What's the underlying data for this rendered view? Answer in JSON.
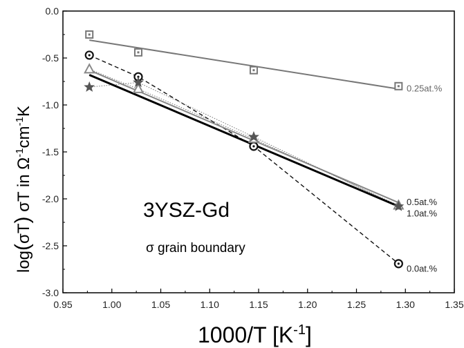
{
  "chart_data": {
    "type": "scatter",
    "xlabel_main": "1000/T [K",
    "xlabel_sup": "-1",
    "xlabel_end": "]",
    "ylabel": {
      "log": "log",
      "paren_open": "(",
      "sigma_t": "σT",
      "paren_close": ")",
      "sigma_t2": " σT  in Ω",
      "sup1": "-1",
      "cm": "cm",
      "sup2": "-1",
      "k": "K"
    },
    "xlim": [
      0.95,
      1.35
    ],
    "ylim": [
      -3.0,
      0.0
    ],
    "xticks": [
      "0.95",
      "1.00",
      "1.05",
      "1.10",
      "1.15",
      "1.20",
      "1.25",
      "1.30",
      "1.35"
    ],
    "yticks": [
      "0.0",
      "-0.5",
      "-1.0",
      "-1.5",
      "-2.0",
      "-2.5",
      "-3.0"
    ],
    "annotations": {
      "main": "3YSZ-Gd",
      "sub": "σ grain boundary"
    },
    "series": [
      {
        "label": "0.25at.%",
        "marker": "square",
        "color": "#777777",
        "x": [
          0.977,
          1.027,
          1.145,
          1.293
        ],
        "y": [
          -0.25,
          -0.44,
          -0.63,
          -0.8
        ],
        "fit": [
          [
            0.977,
            -0.31
          ],
          [
            1.293,
            -0.83
          ]
        ],
        "fit_style": "solid",
        "data_line": "none"
      },
      {
        "label": "0.0at.%",
        "marker": "circle-dot",
        "color": "#111111",
        "x": [
          0.977,
          1.027,
          1.145,
          1.293
        ],
        "y": [
          -0.47,
          -0.7,
          -1.44,
          -2.69
        ],
        "fit": [],
        "fit_style": "none",
        "data_line": "dashed"
      },
      {
        "label": "0.5at.%",
        "marker": "triangle",
        "color": "#888888",
        "x": [
          0.977,
          1.027,
          1.145,
          1.293
        ],
        "y": [
          -0.62,
          -0.83,
          -1.36,
          -2.07
        ],
        "fit": [
          [
            0.977,
            -0.63
          ],
          [
            1.293,
            -2.04
          ]
        ],
        "fit_style": "solid",
        "data_line": "dotted"
      },
      {
        "label": "1.0at.%",
        "marker": "star",
        "color": "#555555",
        "x": [
          0.977,
          1.027,
          1.145,
          1.293
        ],
        "y": [
          -0.81,
          -0.76,
          -1.34,
          -2.08
        ],
        "fit": [
          [
            0.977,
            -0.68
          ],
          [
            1.293,
            -2.08
          ]
        ],
        "fit_style": "solid-bold",
        "data_line": "dotted"
      }
    ],
    "series_label_positions": [
      {
        "label": "0.25at.%",
        "x": 1.297,
        "y": -0.82
      },
      {
        "label": "0.5at.%",
        "x": 1.297,
        "y": -2.03
      },
      {
        "label": "1.0at.%",
        "x": 1.297,
        "y": -2.15
      },
      {
        "label": "0.0at.%",
        "x": 1.297,
        "y": -2.74
      }
    ]
  }
}
